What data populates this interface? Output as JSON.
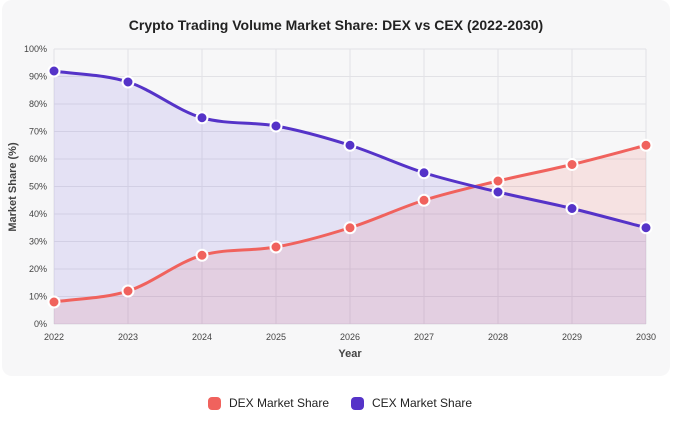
{
  "chart_data": {
    "type": "area",
    "title": "Crypto Trading Volume Market Share: DEX vs CEX (2022-2030)",
    "xlabel": "Year",
    "ylabel": "Market Share (%)",
    "x": [
      "2022",
      "2023",
      "2024",
      "2025",
      "2026",
      "2027",
      "2028",
      "2029",
      "2030"
    ],
    "ylim": [
      0,
      100
    ],
    "yticks": [
      "0%",
      "10%",
      "20%",
      "30%",
      "40%",
      "50%",
      "60%",
      "70%",
      "80%",
      "90%",
      "100%"
    ],
    "grid": true,
    "legend_position": "bottom",
    "series": [
      {
        "name": "DEX Market Share",
        "values": [
          8,
          12,
          25,
          28,
          35,
          45,
          52,
          58,
          65
        ],
        "color": "#f0625d",
        "fill": "rgba(240, 98, 93, 0.14)"
      },
      {
        "name": "CEX Market Share",
        "values": [
          92,
          88,
          75,
          72,
          65,
          55,
          48,
          42,
          35
        ],
        "color": "#5533c8",
        "fill": "rgba(110, 90, 220, 0.14)"
      }
    ]
  }
}
